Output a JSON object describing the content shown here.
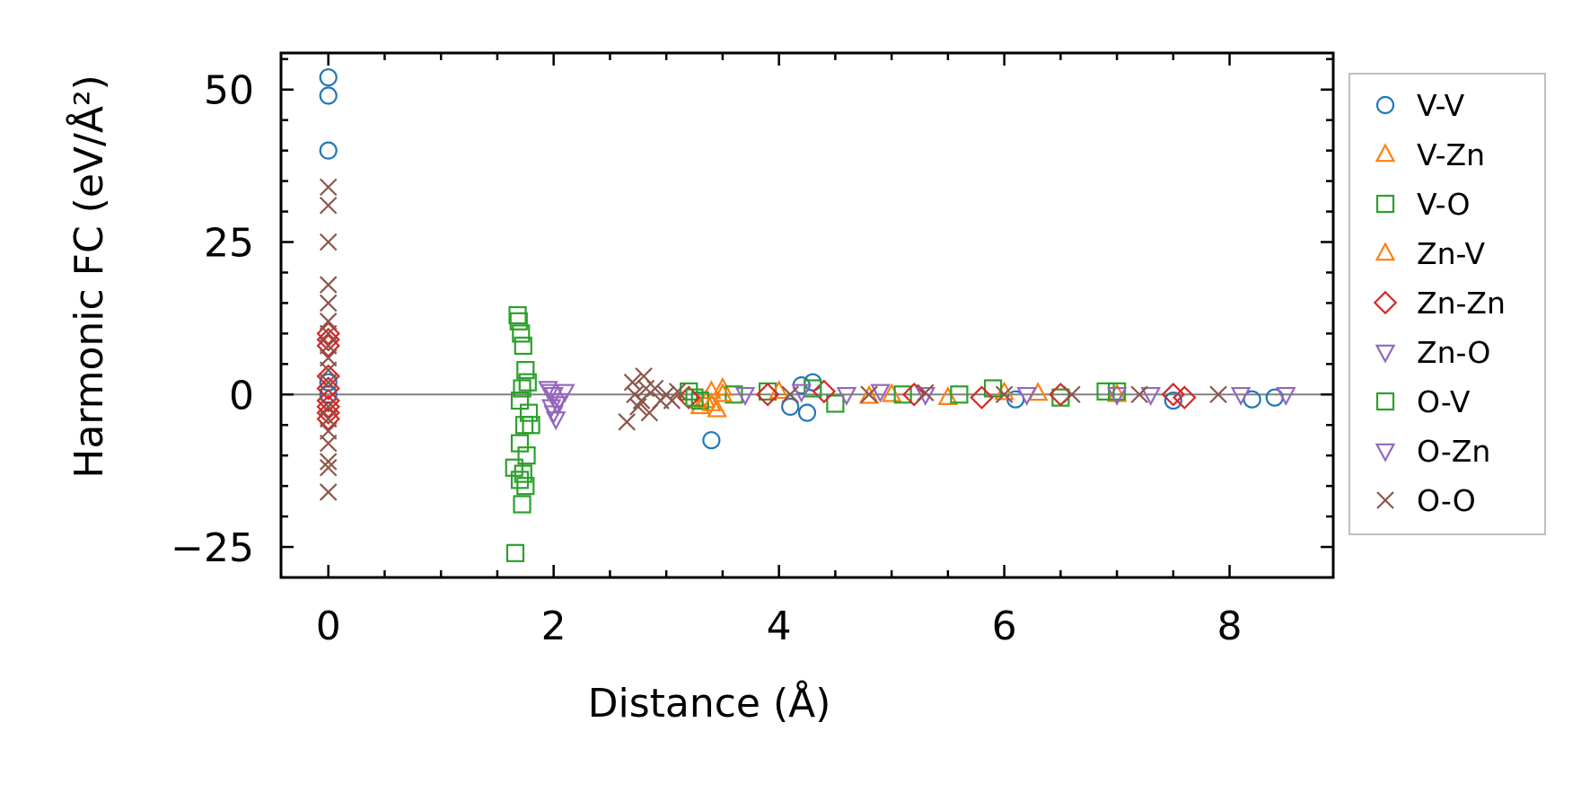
{
  "chart_data": {
    "type": "scatter",
    "xlabel": "Distance (Å)",
    "ylabel": "Harmonic FC (eV/Å²)",
    "xlim": [
      -0.42,
      8.92
    ],
    "ylim": [
      -30,
      56
    ],
    "xticks": [
      0,
      2,
      4,
      6,
      8
    ],
    "xtick_labels": [
      "0",
      "2",
      "4",
      "6",
      "8"
    ],
    "yticks": [
      -25,
      0,
      25,
      50
    ],
    "ytick_labels": [
      "−25",
      "0",
      "25",
      "50"
    ],
    "zero_line": true,
    "grid": false,
    "legend_position": "outside-right",
    "series": [
      {
        "name": "V-V",
        "marker": "circle",
        "color": "#1f77b4",
        "points": [
          [
            0,
            52
          ],
          [
            0,
            49
          ],
          [
            0,
            40
          ],
          [
            0,
            2
          ],
          [
            0,
            0
          ],
          [
            3.4,
            -7.5
          ],
          [
            4.1,
            -2
          ],
          [
            4.2,
            1.5
          ],
          [
            4.25,
            -3
          ],
          [
            4.3,
            2
          ],
          [
            6.1,
            -0.8
          ],
          [
            7.5,
            -1
          ],
          [
            8.2,
            -0.8
          ],
          [
            8.4,
            -0.5
          ]
        ]
      },
      {
        "name": "V-Zn",
        "marker": "triangle-up",
        "color": "#ff7f0e",
        "points": [
          [
            3.3,
            -2
          ],
          [
            3.35,
            -1
          ],
          [
            3.4,
            0.5
          ],
          [
            3.45,
            -2.5
          ],
          [
            3.5,
            1
          ],
          [
            5.0,
            0
          ],
          [
            5.5,
            -0.5
          ],
          [
            6.0,
            0.3
          ],
          [
            7.0,
            0
          ]
        ]
      },
      {
        "name": "V-O",
        "marker": "square",
        "color": "#2ca02c",
        "points": [
          [
            1.68,
            13
          ],
          [
            1.65,
            -12
          ],
          [
            1.7,
            -14
          ],
          [
            1.72,
            -18
          ],
          [
            1.66,
            -26
          ],
          [
            1.75,
            -15
          ],
          [
            1.7,
            -8
          ],
          [
            1.74,
            -5
          ],
          [
            1.78,
            -3
          ],
          [
            1.7,
            -1
          ],
          [
            1.72,
            1
          ],
          [
            1.75,
            4
          ],
          [
            1.73,
            8
          ],
          [
            1.71,
            10
          ],
          [
            1.76,
            -10
          ],
          [
            1.8,
            -5
          ],
          [
            3.2,
            0.5
          ],
          [
            3.3,
            -1
          ],
          [
            3.6,
            0
          ],
          [
            3.9,
            0.5
          ],
          [
            4.5,
            -1.5
          ],
          [
            5.1,
            0
          ],
          [
            5.9,
            1
          ],
          [
            6.5,
            -0.5
          ],
          [
            7.0,
            0.5
          ]
        ]
      },
      {
        "name": "Zn-V",
        "marker": "triangle-up",
        "color": "#ff7f0e",
        "points": [
          [
            3.4,
            -1.5
          ],
          [
            3.5,
            0
          ],
          [
            4.0,
            0.5
          ],
          [
            4.8,
            -0.3
          ],
          [
            6.3,
            0.2
          ]
        ]
      },
      {
        "name": "Zn-Zn",
        "marker": "diamond",
        "color": "#d62728",
        "points": [
          [
            0,
            10
          ],
          [
            0,
            9
          ],
          [
            0,
            8
          ],
          [
            0,
            3
          ],
          [
            0,
            1
          ],
          [
            0,
            -1
          ],
          [
            0,
            -2
          ],
          [
            0,
            -3
          ],
          [
            0,
            -4
          ],
          [
            3.2,
            -0.5
          ],
          [
            3.9,
            0
          ],
          [
            4.4,
            0.5
          ],
          [
            5.2,
            0
          ],
          [
            5.8,
            -0.5
          ],
          [
            6.5,
            0
          ],
          [
            7.5,
            0
          ],
          [
            7.6,
            -0.5
          ]
        ]
      },
      {
        "name": "Zn-O",
        "marker": "triangle-down",
        "color": "#9467bd",
        "points": [
          [
            1.95,
            1
          ],
          [
            2.0,
            0
          ],
          [
            2.05,
            -1
          ],
          [
            1.98,
            -2
          ],
          [
            2.0,
            -3
          ],
          [
            2.02,
            -4
          ],
          [
            2.1,
            0.5
          ],
          [
            3.7,
            0
          ],
          [
            4.6,
            0
          ],
          [
            5.3,
            0
          ],
          [
            6.2,
            0
          ],
          [
            7.3,
            0
          ],
          [
            8.1,
            0
          ]
        ]
      },
      {
        "name": "O-V",
        "marker": "square",
        "color": "#2ca02c",
        "points": [
          [
            1.69,
            12
          ],
          [
            1.73,
            -13
          ],
          [
            1.77,
            2
          ],
          [
            3.25,
            -0.5
          ],
          [
            4.3,
            1
          ],
          [
            5.6,
            0
          ],
          [
            6.9,
            0.5
          ]
        ]
      },
      {
        "name": "O-Zn",
        "marker": "triangle-down",
        "color": "#9467bd",
        "points": [
          [
            1.97,
            0.5
          ],
          [
            2.03,
            -1.5
          ],
          [
            4.2,
            0.5
          ],
          [
            4.9,
            0.5
          ],
          [
            7.0,
            0
          ],
          [
            8.5,
            0
          ]
        ]
      },
      {
        "name": "O-O",
        "marker": "x",
        "color": "#8c564b",
        "points": [
          [
            0,
            34
          ],
          [
            0,
            31
          ],
          [
            0,
            25
          ],
          [
            0,
            18
          ],
          [
            0,
            15
          ],
          [
            0,
            12
          ],
          [
            0,
            10
          ],
          [
            0,
            8
          ],
          [
            0,
            6
          ],
          [
            0,
            4
          ],
          [
            0,
            2
          ],
          [
            0,
            -2
          ],
          [
            0,
            -4
          ],
          [
            0,
            -6
          ],
          [
            0,
            -8
          ],
          [
            0,
            -11
          ],
          [
            0,
            -12
          ],
          [
            0,
            -16
          ],
          [
            2.65,
            -4.5
          ],
          [
            2.7,
            2
          ],
          [
            2.75,
            -2
          ],
          [
            2.8,
            3
          ],
          [
            2.85,
            -3
          ],
          [
            2.9,
            1
          ],
          [
            2.95,
            -1
          ],
          [
            3.0,
            0
          ],
          [
            3.05,
            -1
          ],
          [
            3.1,
            0.5
          ],
          [
            2.72,
            0
          ],
          [
            2.78,
            -1
          ],
          [
            2.82,
            1
          ],
          [
            4.1,
            0
          ],
          [
            4.8,
            0
          ],
          [
            5.3,
            0.3
          ],
          [
            6.0,
            0
          ],
          [
            6.6,
            0
          ],
          [
            7.2,
            0
          ],
          [
            7.9,
            0
          ]
        ]
      }
    ]
  }
}
